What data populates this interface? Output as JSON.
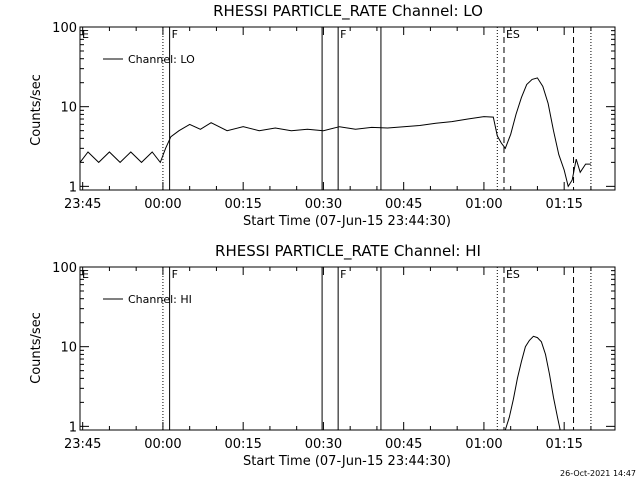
{
  "footer_stamp": "26-Oct-2021 14:47",
  "chart_data": [
    {
      "type": "line",
      "title": "RHESSI PARTICLE_RATE Channel: LO",
      "xlabel": "Start Time (07-Jun-15 23:44:30)",
      "ylabel": "Counts/sec",
      "legend": "Channel: LO",
      "legend_position": "top-left",
      "yscale": "log",
      "ylim": [
        0.9,
        100
      ],
      "xlim": [
        "23:44:30",
        "01:24:30"
      ],
      "x_ticks": [
        "23:45",
        "00:00",
        "00:15",
        "00:30",
        "00:45",
        "01:00",
        "01:15"
      ],
      "y_ticks": [
        "1",
        "10",
        "100"
      ],
      "markers": [
        {
          "label": "E",
          "time": "23:44:30",
          "style": "none"
        },
        {
          "label": "",
          "time": "00:00:00",
          "style": "dotted"
        },
        {
          "label": "F",
          "time": "00:01:15",
          "style": "solid"
        },
        {
          "label": "",
          "time": "00:29:45",
          "style": "solid"
        },
        {
          "label": "F",
          "time": "00:32:45",
          "style": "solid"
        },
        {
          "label": "",
          "time": "00:40:45",
          "style": "solid"
        },
        {
          "label": "",
          "time": "01:02:30",
          "style": "dotted"
        },
        {
          "label": "ES",
          "time": "01:03:45",
          "style": "dashed"
        },
        {
          "label": "",
          "time": "01:16:45",
          "style": "dashed"
        },
        {
          "label": "",
          "time": "01:20:00",
          "style": "dotted"
        }
      ],
      "series": [
        {
          "name": "Channel: LO",
          "x": [
            "23:44:30",
            "23:46:00",
            "23:48:00",
            "23:50:00",
            "23:52:00",
            "23:54:00",
            "23:56:00",
            "23:58:00",
            "23:59:30",
            "00:00:30",
            "00:01:30",
            "00:03:00",
            "00:05:00",
            "00:07:00",
            "00:09:00",
            "00:12:00",
            "00:15:00",
            "00:18:00",
            "00:21:00",
            "00:24:00",
            "00:27:00",
            "00:30:00",
            "00:33:00",
            "00:36:00",
            "00:39:00",
            "00:42:00",
            "00:45:00",
            "00:48:00",
            "00:51:00",
            "00:54:00",
            "00:57:00",
            "01:00:00",
            "01:01:45",
            "01:02:30",
            "01:03:15",
            "01:04:00",
            "01:05:00",
            "01:06:00",
            "01:07:00",
            "01:08:00",
            "01:09:00",
            "01:10:00",
            "01:11:00",
            "01:12:00",
            "01:13:00",
            "01:14:00",
            "01:15:00",
            "01:15:45",
            "01:16:30",
            "01:17:15",
            "01:18:00",
            "01:19:00",
            "01:20:00"
          ],
          "y": [
            2.0,
            2.7,
            2.0,
            2.7,
            2.0,
            2.7,
            2.0,
            2.7,
            2.0,
            3.0,
            4.2,
            5.0,
            6.0,
            5.2,
            6.3,
            5.0,
            5.6,
            5.0,
            5.4,
            5.0,
            5.2,
            5.0,
            5.6,
            5.2,
            5.5,
            5.4,
            5.6,
            5.8,
            6.2,
            6.5,
            7.0,
            7.5,
            7.4,
            4.3,
            3.5,
            3.0,
            4.5,
            8.0,
            13.0,
            19.0,
            22.0,
            23.0,
            18.0,
            11.0,
            5.0,
            2.5,
            1.6,
            1.0,
            1.2,
            2.2,
            1.5,
            1.9,
            1.9
          ]
        }
      ]
    },
    {
      "type": "line",
      "title": "RHESSI PARTICLE_RATE Channel: HI",
      "xlabel": "Start Time (07-Jun-15 23:44:30)",
      "ylabel": "Counts/sec",
      "legend": "Channel: HI",
      "legend_position": "top-left",
      "yscale": "log",
      "ylim": [
        0.9,
        100
      ],
      "xlim": [
        "23:44:30",
        "01:24:30"
      ],
      "x_ticks": [
        "23:45",
        "00:00",
        "00:15",
        "00:30",
        "00:45",
        "01:00",
        "01:15"
      ],
      "y_ticks": [
        "1",
        "10",
        "100"
      ],
      "markers": [
        {
          "label": "E",
          "time": "23:44:30",
          "style": "none"
        },
        {
          "label": "",
          "time": "00:00:00",
          "style": "dotted"
        },
        {
          "label": "F",
          "time": "00:01:15",
          "style": "solid"
        },
        {
          "label": "",
          "time": "00:29:45",
          "style": "solid"
        },
        {
          "label": "F",
          "time": "00:32:45",
          "style": "solid"
        },
        {
          "label": "",
          "time": "00:40:45",
          "style": "solid"
        },
        {
          "label": "",
          "time": "01:02:30",
          "style": "dotted"
        },
        {
          "label": "ES",
          "time": "01:03:45",
          "style": "dashed"
        },
        {
          "label": "",
          "time": "01:16:45",
          "style": "dashed"
        },
        {
          "label": "",
          "time": "01:20:00",
          "style": "dotted"
        }
      ],
      "series": [
        {
          "name": "Channel: HI",
          "x": [
            "01:04:00",
            "01:04:45",
            "01:05:30",
            "01:06:15",
            "01:07:00",
            "01:07:45",
            "01:08:30",
            "01:09:15",
            "01:10:00",
            "01:10:45",
            "01:11:30",
            "01:12:15",
            "01:13:00",
            "01:13:45",
            "01:14:15"
          ],
          "y": [
            0.9,
            1.3,
            2.2,
            4.0,
            6.5,
            10.0,
            12.0,
            13.5,
            13.0,
            11.5,
            8.0,
            4.5,
            2.3,
            1.3,
            0.9
          ]
        }
      ]
    }
  ]
}
